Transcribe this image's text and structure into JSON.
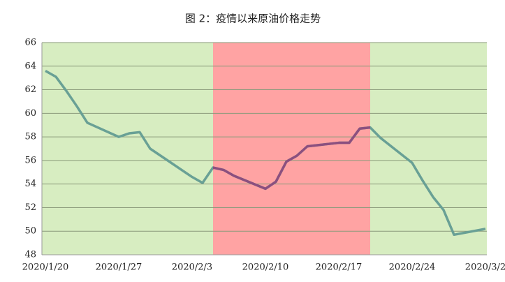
{
  "chart_data": {
    "type": "line",
    "title": "图 2：疫情以来原油价格走势",
    "x": [
      "2020/1/20",
      "2020/1/21",
      "2020/1/22",
      "2020/1/23",
      "2020/1/24",
      "2020/1/27",
      "2020/1/28",
      "2020/1/29",
      "2020/1/30",
      "2020/1/31",
      "2020/2/3",
      "2020/2/4",
      "2020/2/5",
      "2020/2/6",
      "2020/2/7",
      "2020/2/10",
      "2020/2/11",
      "2020/2/12",
      "2020/2/13",
      "2020/2/14",
      "2020/2/17",
      "2020/2/18",
      "2020/2/19",
      "2020/2/20",
      "2020/2/21",
      "2020/2/24",
      "2020/2/25",
      "2020/2/26",
      "2020/2/27",
      "2020/2/28",
      "2020/3/2"
    ],
    "series": [
      {
        "color": "#69a095",
        "values": [
          63.6,
          63.1,
          61.9,
          60.6,
          59.2,
          58.0,
          58.3,
          58.4,
          57.0,
          56.4,
          54.6,
          54.1,
          55.4,
          55.2,
          54.7,
          53.6,
          54.2,
          55.9,
          56.4,
          57.2,
          57.5,
          57.5,
          58.7,
          58.8,
          57.9,
          55.8,
          54.3,
          52.9,
          51.8,
          49.7,
          50.2
        ]
      }
    ],
    "xlim": [
      "2020/1/20",
      "2020/3/2"
    ],
    "xticks": [
      "2020/1/20",
      "2020/1/27",
      "2020/2/3",
      "2020/2/10",
      "2020/2/17",
      "2020/2/24",
      "2020/3/2"
    ],
    "ylim": [
      48,
      66
    ],
    "yticks": [
      48,
      50,
      52,
      54,
      56,
      58,
      60,
      62,
      64,
      66
    ],
    "grid": true,
    "background_color": "#d7edc1",
    "regions": [
      {
        "from": "2020/2/5",
        "to": "2020/2/20",
        "color": "#ffa3a3",
        "line_color": "#8c4f7f"
      }
    ]
  }
}
